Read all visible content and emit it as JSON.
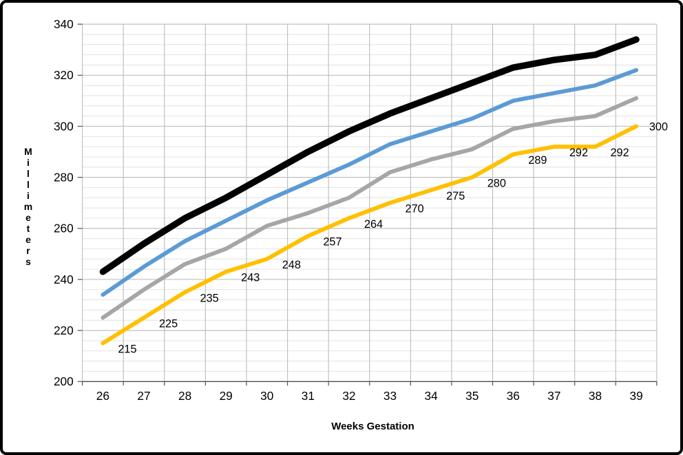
{
  "figure": {
    "y_axis_title": "Millimeters",
    "x_axis_title": "Weeks Gestation"
  },
  "chart_data": {
    "type": "line",
    "title": "",
    "xlabel": "Weeks Gestation",
    "ylabel": "Millimeters",
    "x": [
      26,
      27,
      28,
      29,
      30,
      31,
      32,
      33,
      34,
      35,
      36,
      37,
      38,
      39
    ],
    "x_tick_labels": [
      "26",
      "27",
      "28",
      "29",
      "30",
      "31",
      "32",
      "33",
      "34",
      "35",
      "36",
      "37",
      "38",
      "39"
    ],
    "ylim": [
      200,
      340
    ],
    "y_ticks": [
      200,
      220,
      240,
      260,
      280,
      300,
      320,
      340
    ],
    "y_minor_step": 4,
    "grid": true,
    "legend": "none",
    "colors": {
      "black_line": "#000000",
      "blue_line": "#5B9BD5",
      "gray_line": "#A6A6A6",
      "yellow_line": "#FFC000",
      "major_grid": "#BFBFBF",
      "minor_grid": "#E2E2E2",
      "axis": "#4D4D4D",
      "label_text": "#000000"
    },
    "series": [
      {
        "name": "upper-black",
        "color": "#000000",
        "width": 9.5,
        "values": [
          243,
          254,
          264,
          272,
          281,
          290,
          298,
          305,
          311,
          317,
          323,
          326,
          328,
          334
        ],
        "labeled": false
      },
      {
        "name": "upper-blue",
        "color": "#5B9BD5",
        "width": 6,
        "values": [
          234,
          245,
          255,
          263,
          271,
          278,
          285,
          293,
          298,
          303,
          310,
          313,
          316,
          322
        ],
        "labeled": false
      },
      {
        "name": "middle-gray",
        "color": "#A6A6A6",
        "width": 6,
        "values": [
          225,
          236,
          246,
          252,
          261,
          266,
          272,
          282,
          287,
          291,
          299,
          302,
          304,
          311
        ],
        "labeled": false
      },
      {
        "name": "measured-yellow",
        "color": "#FFC000",
        "width": 6,
        "values": [
          215,
          225,
          235,
          243,
          248,
          257,
          264,
          270,
          275,
          280,
          289,
          292,
          292,
          300
        ],
        "labeled": true,
        "point_labels": [
          "215",
          "225",
          "235",
          "243",
          "248",
          "257",
          "264",
          "270",
          "275",
          "280",
          "289",
          "292",
          "292",
          "300"
        ]
      }
    ]
  }
}
